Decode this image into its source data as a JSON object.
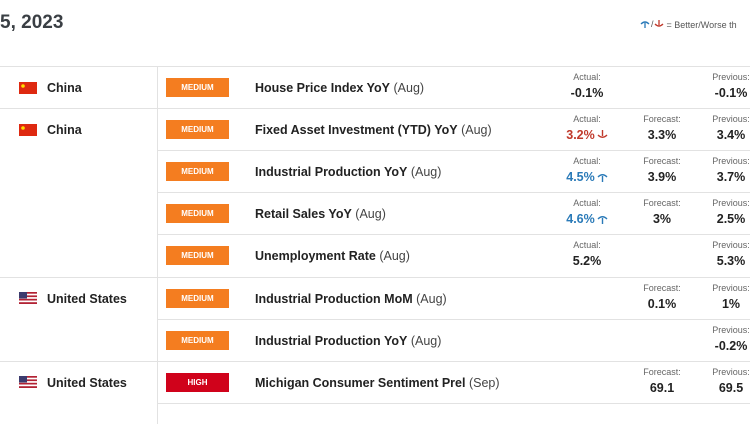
{
  "header": {
    "date": "5, 2023",
    "legend": "= Better/Worse th"
  },
  "labels": {
    "actual": "Actual:",
    "forecast": "Forecast:",
    "previous": "Previous:"
  },
  "rows": [
    {
      "country": "China",
      "impact": "MEDIUM",
      "impact_color": "#f47d20",
      "event": "House Price Index YoY",
      "period": "(Aug)",
      "actual": "-0.1%",
      "actual_status": null,
      "forecast": null,
      "previous": "-0.1%"
    },
    {
      "country": "China",
      "impact": "MEDIUM",
      "impact_color": "#f47d20",
      "event": "Fixed Asset Investment (YTD) YoY",
      "period": "(Aug)",
      "actual": "3.2%",
      "actual_status": "worse",
      "forecast": "3.3%",
      "previous": "3.4%"
    },
    {
      "country": null,
      "impact": "MEDIUM",
      "impact_color": "#f47d20",
      "event": "Industrial Production YoY",
      "period": "(Aug)",
      "actual": "4.5%",
      "actual_status": "better",
      "forecast": "3.9%",
      "previous": "3.7%"
    },
    {
      "country": null,
      "impact": "MEDIUM",
      "impact_color": "#f47d20",
      "event": "Retail Sales YoY",
      "period": "(Aug)",
      "actual": "4.6%",
      "actual_status": "better",
      "forecast": "3%",
      "previous": "2.5%"
    },
    {
      "country": null,
      "impact": "MEDIUM",
      "impact_color": "#f47d20",
      "event": "Unemployment Rate",
      "period": "(Aug)",
      "actual": "5.2%",
      "actual_status": null,
      "forecast": null,
      "previous": "5.3%"
    },
    {
      "country": "United States",
      "impact": "MEDIUM",
      "impact_color": "#f47d20",
      "event": "Industrial Production MoM",
      "period": "(Aug)",
      "actual": null,
      "actual_status": null,
      "forecast": "0.1%",
      "previous": "1%"
    },
    {
      "country": null,
      "impact": "MEDIUM",
      "impact_color": "#f47d20",
      "event": "Industrial Production YoY",
      "period": "(Aug)",
      "actual": null,
      "actual_status": null,
      "forecast": null,
      "previous": "-0.2%"
    },
    {
      "country": "United States",
      "impact": "HIGH",
      "impact_color": "#d0021b",
      "event": "Michigan Consumer Sentiment Prel",
      "period": "(Sep)",
      "actual": null,
      "actual_status": null,
      "forecast": "69.1",
      "previous": "69.5"
    }
  ]
}
